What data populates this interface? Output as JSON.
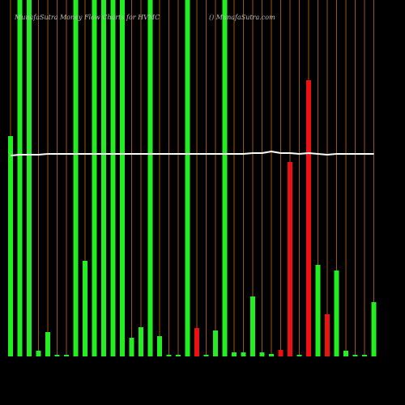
{
  "chart_data": {
    "type": "bar",
    "title": "MunafaSutra  Money Flow  Charts for HVMC",
    "subtitle": "() MunafaSutra.com",
    "categories": [
      null,
      null,
      null,
      null,
      null,
      null,
      null,
      null,
      null,
      null,
      null,
      null,
      null,
      null,
      null,
      null,
      null,
      null,
      null,
      null,
      null,
      null,
      null,
      null,
      null,
      null,
      null,
      null,
      null,
      null,
      null,
      null,
      null,
      null,
      null,
      null,
      null,
      null,
      null,
      null
    ],
    "values": [
      272,
      440,
      440,
      7,
      30,
      2,
      2,
      440,
      118,
      440,
      440,
      440,
      440,
      23,
      36,
      440,
      25,
      2,
      2,
      440,
      35,
      2,
      32,
      440,
      5,
      5,
      74,
      5,
      3,
      8,
      240,
      2,
      341,
      113,
      52,
      106,
      7,
      2,
      2,
      67
    ],
    "colors": [
      "#22ee22",
      "#22ee22",
      "#22ee22",
      "#22ee22",
      "#22ee22",
      "#22ee22",
      "#22ee22",
      "#22ee22",
      "#22ee22",
      "#22ee22",
      "#22ee22",
      "#22ee22",
      "#22ee22",
      "#22ee22",
      "#22ee22",
      "#22ee22",
      "#22ee22",
      "#22ee22",
      "#22ee22",
      "#22ee22",
      "#ee1111",
      "#22ee22",
      "#22ee22",
      "#22ee22",
      "#22ee22",
      "#22ee22",
      "#22ee22",
      "#22ee22",
      "#22ee22",
      "#ee1111",
      "#ee1111",
      "#22ee22",
      "#ee1111",
      "#22ee22",
      "#ee1111",
      "#22ee22",
      "#22ee22",
      "#22ee22",
      "#22ee22",
      "#22ee22"
    ],
    "line": {
      "color": "#ffffff",
      "values": [
        248,
        249,
        249,
        249,
        250,
        250,
        250,
        250,
        250,
        250,
        250,
        250,
        250,
        250,
        250,
        250,
        250,
        250,
        250,
        250,
        250,
        250,
        250,
        250,
        250,
        250,
        251,
        251,
        253,
        251,
        251,
        250,
        251,
        250,
        249,
        250,
        250,
        250,
        250,
        250
      ]
    },
    "ylim": [
      0,
      440
    ],
    "gridline_color": "#a0520f"
  }
}
